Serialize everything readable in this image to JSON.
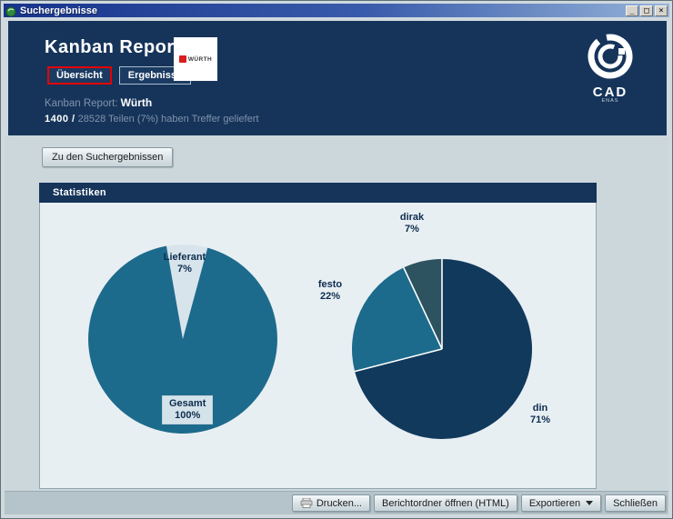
{
  "window": {
    "title": "Suchergebnisse",
    "icons": {
      "minimize": "_",
      "maximize": "□",
      "close": "×"
    }
  },
  "header": {
    "title": "Kanban Report",
    "tabs": [
      {
        "label": "Übersicht",
        "active": true,
        "highlighted_red": true
      },
      {
        "label": "Ergebnisse",
        "active": false
      }
    ],
    "wurth_logo": {
      "text": "WÜRTH"
    },
    "cadenas_logo": {
      "text": "CAD",
      "subtext": "ENAS"
    },
    "report_label": "Kanban Report:",
    "report_value": "Würth",
    "stats": {
      "bold": "1400 /",
      "text": "28528 Teilen (7%) haben Treffer geliefert"
    }
  },
  "content": {
    "results_button_label": "Zu den Suchergebnissen",
    "panel_title": "Statistiken"
  },
  "footer": {
    "print_label": "Drucken...",
    "report_folder_label": "Berichtordner öffnen (HTML)",
    "export_label": "Exportieren",
    "close_label": "Schließen"
  },
  "colors": {
    "header_navy": "#16345a",
    "content_bg": "#ccd7dc",
    "panel_body_bg": "#e8eff3",
    "red_highlight": "#e60000",
    "pie_teal": "#1d6b8c",
    "pie_navy": "#11395c",
    "pie_dark_slate": "#2d5360",
    "pie_light": "#d8e4ec"
  },
  "chart_data": [
    {
      "type": "pie",
      "name": "gesamt-lieferant-pie",
      "note": "Gesamt is the full circle shown as 100%; Lieferant wedge overlays 7%",
      "start_angle_deg": -10,
      "separators": false,
      "slices": [
        {
          "label": "Lieferant",
          "pct": 7,
          "pct_label": "7%",
          "draw_pct": 7,
          "color": "#d8e4ec"
        },
        {
          "label": "Gesamt",
          "pct": 100,
          "pct_label": "100%",
          "draw_pct": 93,
          "color": "#1d6b8c"
        }
      ]
    },
    {
      "type": "pie",
      "name": "norm-distribution-pie",
      "start_angle_deg": 0,
      "separators": true,
      "slices": [
        {
          "label": "din",
          "pct": 71,
          "pct_label": "71%",
          "draw_pct": 71,
          "color": "#11395c"
        },
        {
          "label": "festo",
          "pct": 22,
          "pct_label": "22%",
          "draw_pct": 22,
          "color": "#1d6b8c"
        },
        {
          "label": "dirak",
          "pct": 7,
          "pct_label": "7%",
          "draw_pct": 7,
          "color": "#2d5360"
        }
      ]
    }
  ]
}
